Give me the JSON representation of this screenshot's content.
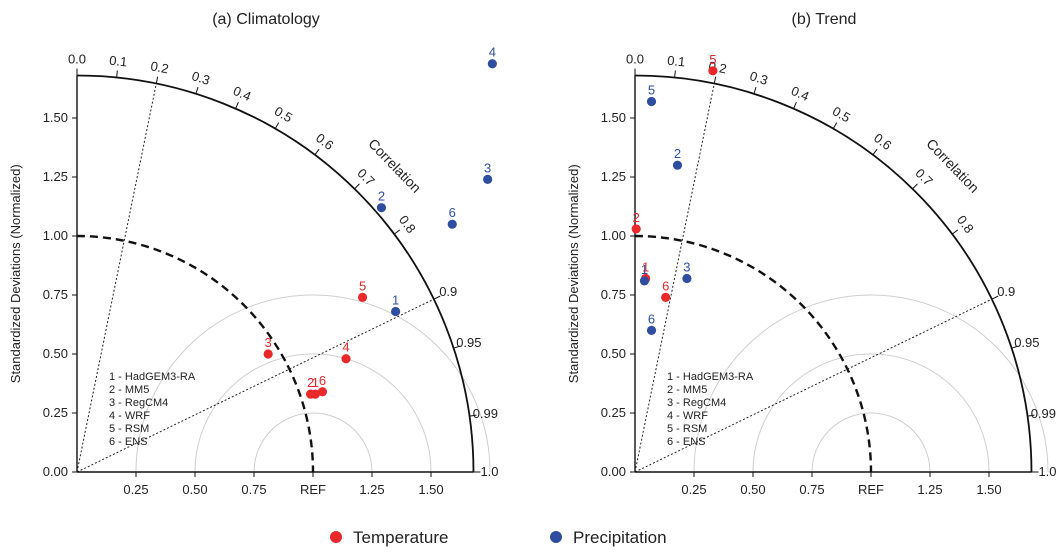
{
  "chart_data": [
    {
      "type": "scatter",
      "subtype": "taylor-diagram",
      "title": "(a) Climatology",
      "ylabel": "Standardized Deviations (Normalized)",
      "arc_label": "Correlation",
      "ref_label": "REF",
      "std_range": [
        0,
        1.68
      ],
      "std_ticks": [
        "0.00",
        "0.25",
        "0.50",
        "0.75",
        "1.00",
        "1.25",
        "1.50"
      ],
      "x_ticks": [
        "0.25",
        "0.50",
        "0.75",
        "REF",
        "1.25",
        "1.50"
      ],
      "correlation_ticks": [
        "0.0",
        "0.1",
        "0.2",
        "0.3",
        "0.4",
        "0.5",
        "0.6",
        "0.7",
        "0.8",
        "0.9",
        "0.95",
        "0.99",
        "1.0"
      ],
      "guide_correlations": [
        0.2,
        0.9
      ],
      "models": [
        "1 - HadGEM3-RA",
        "2 - MM5",
        "3 - RegCM4",
        "4 - WRF",
        "5 - RSM",
        "6 - ENS"
      ],
      "series": [
        {
          "name": "Temperature",
          "color": "#e8282b",
          "points": [
            {
              "label": "1",
              "x": 1.01,
              "y": 0.33
            },
            {
              "label": "2",
              "x": 0.99,
              "y": 0.33
            },
            {
              "label": "3",
              "x": 0.81,
              "y": 0.5
            },
            {
              "label": "4",
              "x": 1.14,
              "y": 0.48
            },
            {
              "label": "5",
              "x": 1.21,
              "y": 0.74
            },
            {
              "label": "6",
              "x": 1.04,
              "y": 0.34
            }
          ]
        },
        {
          "name": "Precipitation",
          "color": "#2f4e9f",
          "points": [
            {
              "label": "1",
              "x": 1.35,
              "y": 0.68
            },
            {
              "label": "2",
              "x": 1.29,
              "y": 1.12
            },
            {
              "label": "3",
              "x": 1.74,
              "y": 1.24
            },
            {
              "label": "4",
              "x": 1.76,
              "y": 1.73
            },
            {
              "label": "6",
              "x": 1.59,
              "y": 1.05
            }
          ]
        }
      ]
    },
    {
      "type": "scatter",
      "subtype": "taylor-diagram",
      "title": "(b) Trend",
      "ylabel": "Standardized Deviations (Normalized)",
      "arc_label": "Correlation",
      "ref_label": "REF",
      "std_range": [
        0,
        1.68
      ],
      "std_ticks": [
        "0.00",
        "0.25",
        "0.50",
        "0.75",
        "1.00",
        "1.25",
        "1.50"
      ],
      "x_ticks": [
        "0.25",
        "0.50",
        "0.75",
        "REF",
        "1.25",
        "1.50"
      ],
      "correlation_ticks": [
        "0.0",
        "0.1",
        "0.2",
        "0.3",
        "0.4",
        "0.5",
        "0.6",
        "0.7",
        "0.8",
        "0.9",
        "0.95",
        "0.99",
        "1.0"
      ],
      "guide_correlations": [
        0.2,
        0.9
      ],
      "models": [
        "1 - HadGEM3-RA",
        "2 - MM5",
        "3 - RegCM4",
        "4 - WRF",
        "5 - RSM",
        "6 - ENS"
      ],
      "series": [
        {
          "name": "Temperature",
          "color": "#e8282b",
          "points": [
            {
              "label": "1",
              "x": 0.045,
              "y": 0.82
            },
            {
              "label": "2",
              "x": 0.005,
              "y": 1.03
            },
            {
              "label": "5",
              "x": 0.33,
              "y": 1.7
            },
            {
              "label": "6",
              "x": 0.13,
              "y": 0.74
            }
          ]
        },
        {
          "name": "Precipitation",
          "color": "#2f4e9f",
          "points": [
            {
              "label": "1",
              "x": 0.04,
              "y": 0.81
            },
            {
              "label": "2",
              "x": 0.18,
              "y": 1.3
            },
            {
              "label": "3",
              "x": 0.22,
              "y": 0.82
            },
            {
              "label": "5",
              "x": 0.07,
              "y": 1.57
            },
            {
              "label": "6",
              "x": 0.07,
              "y": 0.6
            }
          ]
        }
      ]
    }
  ],
  "legend": {
    "items": [
      {
        "name": "Temperature",
        "color": "#e8282b"
      },
      {
        "name": "Precipitation",
        "color": "#2f4e9f"
      }
    ]
  }
}
